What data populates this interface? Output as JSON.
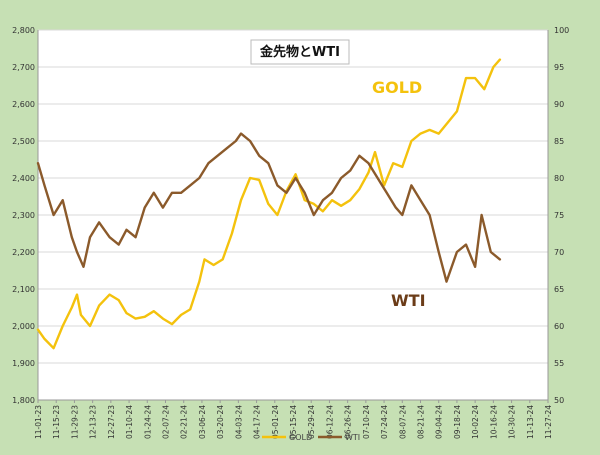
{
  "chart_data": {
    "type": "line",
    "title": "金先物とWTI",
    "grid": "horizontal",
    "legend_position": "bottom",
    "colors": {
      "gold": "#f4c20d",
      "wti": "#8b5a2b",
      "background": "#c6e0b4",
      "plot": "#ffffff"
    },
    "y_left": {
      "range": [
        1800,
        2800
      ],
      "ticks": [
        "1,800",
        "1,900",
        "2,000",
        "2,100",
        "2,200",
        "2,300",
        "2,400",
        "2,500",
        "2,600",
        "2,700",
        "2,800"
      ]
    },
    "y_right": {
      "range": [
        50,
        100
      ],
      "ticks": [
        "50",
        "55",
        "60",
        "65",
        "70",
        "75",
        "80",
        "85",
        "90",
        "95",
        "100"
      ]
    },
    "x_range": [
      "2023-11-01",
      "2024-11-27"
    ],
    "x_tick_labels": [
      "11-01-23",
      "11-15-23",
      "11-29-23",
      "12-13-23",
      "12-27-23",
      "01-10-24",
      "01-24-24",
      "02-07-24",
      "02-21-24",
      "03-06-24",
      "03-20-24",
      "04-03-24",
      "04-17-24",
      "05-01-24",
      "05-15-24",
      "05-29-24",
      "06-12-24",
      "06-26-24",
      "07-10-24",
      "07-24-24",
      "08-07-24",
      "08-21-24",
      "09-04-24",
      "09-18-24",
      "10-02-24",
      "10-16-24",
      "10-30-24",
      "11-13-24",
      "11-27-24"
    ],
    "annotations": [
      {
        "text": "GOLD",
        "series": "gold"
      },
      {
        "text": "WTI",
        "series": "wti"
      }
    ],
    "series": [
      {
        "name": "GOLD",
        "axis": "left",
        "x": [
          "2023-11-01",
          "2023-11-06",
          "2023-11-13",
          "2023-11-20",
          "2023-11-27",
          "2023-12-01",
          "2023-12-04",
          "2023-12-11",
          "2023-12-18",
          "2023-12-26",
          "2024-01-02",
          "2024-01-08",
          "2024-01-15",
          "2024-01-22",
          "2024-01-29",
          "2024-02-05",
          "2024-02-12",
          "2024-02-19",
          "2024-02-26",
          "2024-03-04",
          "2024-03-08",
          "2024-03-15",
          "2024-03-22",
          "2024-03-29",
          "2024-04-05",
          "2024-04-12",
          "2024-04-19",
          "2024-04-26",
          "2024-05-03",
          "2024-05-10",
          "2024-05-17",
          "2024-05-24",
          "2024-05-31",
          "2024-06-07",
          "2024-06-14",
          "2024-06-21",
          "2024-06-28",
          "2024-07-05",
          "2024-07-12",
          "2024-07-17",
          "2024-07-24",
          "2024-07-31",
          "2024-08-07",
          "2024-08-14",
          "2024-08-21",
          "2024-08-28",
          "2024-09-04",
          "2024-09-11",
          "2024-09-18",
          "2024-09-25",
          "2024-10-02",
          "2024-10-09",
          "2024-10-16",
          "2024-10-21"
        ],
        "values": [
          1990,
          1965,
          1940,
          2000,
          2050,
          2085,
          2030,
          2000,
          2055,
          2085,
          2070,
          2035,
          2020,
          2025,
          2040,
          2020,
          2005,
          2030,
          2045,
          2120,
          2180,
          2165,
          2180,
          2250,
          2340,
          2400,
          2395,
          2330,
          2300,
          2365,
          2410,
          2340,
          2330,
          2310,
          2340,
          2325,
          2340,
          2370,
          2415,
          2470,
          2380,
          2440,
          2430,
          2500,
          2520,
          2530,
          2520,
          2550,
          2580,
          2670,
          2670,
          2640,
          2700,
          2720
        ]
      },
      {
        "name": "WTI",
        "axis": "right",
        "x": [
          "2023-11-01",
          "2023-11-06",
          "2023-11-13",
          "2023-11-20",
          "2023-11-27",
          "2023-12-01",
          "2023-12-06",
          "2023-12-11",
          "2023-12-18",
          "2023-12-26",
          "2024-01-02",
          "2024-01-08",
          "2024-01-15",
          "2024-01-22",
          "2024-01-29",
          "2024-02-05",
          "2024-02-12",
          "2024-02-19",
          "2024-02-26",
          "2024-03-04",
          "2024-03-11",
          "2024-03-18",
          "2024-03-25",
          "2024-04-01",
          "2024-04-05",
          "2024-04-12",
          "2024-04-19",
          "2024-04-26",
          "2024-05-03",
          "2024-05-10",
          "2024-05-17",
          "2024-05-24",
          "2024-05-31",
          "2024-06-07",
          "2024-06-14",
          "2024-06-21",
          "2024-06-28",
          "2024-07-05",
          "2024-07-12",
          "2024-07-19",
          "2024-07-26",
          "2024-08-02",
          "2024-08-07",
          "2024-08-14",
          "2024-08-21",
          "2024-08-28",
          "2024-09-04",
          "2024-09-10",
          "2024-09-18",
          "2024-09-25",
          "2024-10-02",
          "2024-10-07",
          "2024-10-14",
          "2024-10-21"
        ],
        "values": [
          82,
          79,
          75,
          77,
          72,
          70,
          68,
          72,
          74,
          72,
          71,
          73,
          72,
          76,
          78,
          76,
          78,
          78,
          79,
          80,
          82,
          83,
          84,
          85,
          86,
          85,
          83,
          82,
          79,
          78,
          80,
          78,
          75,
          77,
          78,
          80,
          81,
          83,
          82,
          80,
          78,
          76,
          75,
          79,
          77,
          75,
          70,
          66,
          70,
          71,
          68,
          75,
          70,
          69
        ]
      }
    ]
  }
}
